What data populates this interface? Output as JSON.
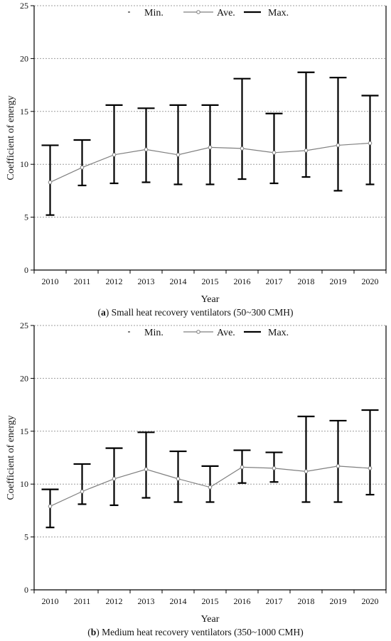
{
  "legend": {
    "min": "Min.",
    "ave": "Ave.",
    "max": "Max."
  },
  "colors": {
    "line": "#7f7f7f",
    "bars": "#000000",
    "grid": "#9e9e9e"
  },
  "chart_data": [
    {
      "type": "line",
      "panel_letter": "a",
      "caption": "Small heat recovery ventilators (50~300 CMH)",
      "xlabel": "Year",
      "ylabel": "Coefficient of energy",
      "x": [
        "2010",
        "2011",
        "2012",
        "2013",
        "2014",
        "2015",
        "2016",
        "2017",
        "2018",
        "2019",
        "2020"
      ],
      "ylim": [
        0,
        25
      ],
      "yticks": [
        0,
        5,
        10,
        15,
        20,
        25
      ],
      "grid": "horizontal dotted",
      "legend_position": "top",
      "series": [
        {
          "name": "Min.",
          "values": [
            5.2,
            8.0,
            8.2,
            8.3,
            8.1,
            8.1,
            8.6,
            8.2,
            8.8,
            7.5,
            8.1
          ]
        },
        {
          "name": "Ave.",
          "values": [
            8.3,
            9.7,
            10.9,
            11.4,
            10.9,
            11.6,
            11.5,
            11.1,
            11.3,
            11.8,
            12.0
          ]
        },
        {
          "name": "Max.",
          "values": [
            11.8,
            12.3,
            15.6,
            15.3,
            15.6,
            15.6,
            18.1,
            14.8,
            18.7,
            18.2,
            16.5
          ]
        }
      ]
    },
    {
      "type": "line",
      "panel_letter": "b",
      "caption": "Medium heat recovery ventilators (350~1000 CMH)",
      "xlabel": "Year",
      "ylabel": "Coefficient of energy",
      "x": [
        "2010",
        "2011",
        "2012",
        "2013",
        "2014",
        "2015",
        "2016",
        "2017",
        "2018",
        "2019",
        "2020"
      ],
      "ylim": [
        0,
        25
      ],
      "yticks": [
        0,
        5,
        10,
        15,
        20,
        25
      ],
      "grid": "horizontal dotted",
      "legend_position": "top",
      "series": [
        {
          "name": "Min.",
          "values": [
            5.9,
            8.1,
            8.0,
            8.7,
            8.3,
            8.3,
            10.1,
            10.2,
            8.3,
            8.3,
            9.0
          ]
        },
        {
          "name": "Ave.",
          "values": [
            7.9,
            9.3,
            10.5,
            11.4,
            10.5,
            9.7,
            11.6,
            11.5,
            11.2,
            11.7,
            11.5
          ]
        },
        {
          "name": "Max.",
          "values": [
            9.5,
            11.9,
            13.4,
            14.9,
            13.1,
            11.7,
            13.2,
            13.0,
            16.4,
            16.0,
            17.0
          ]
        }
      ]
    }
  ]
}
